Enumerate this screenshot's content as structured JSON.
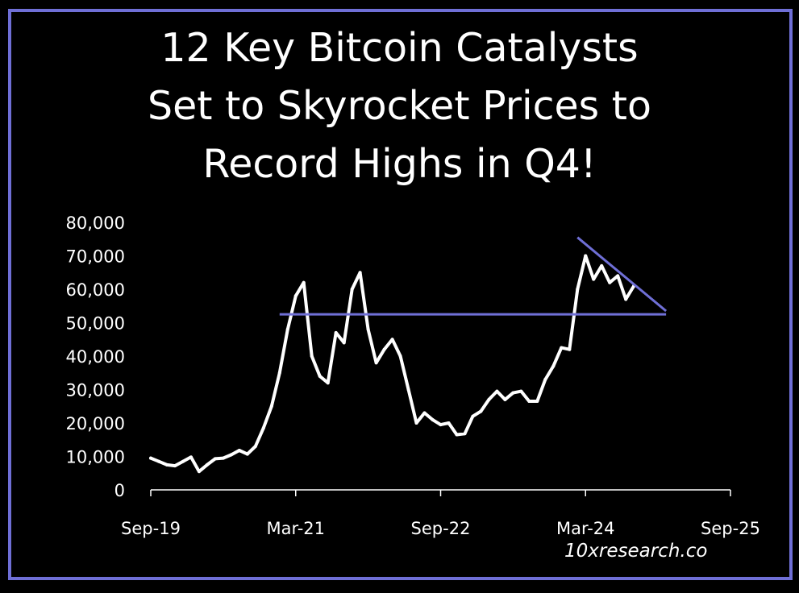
{
  "title_lines": [
    "12 Key Bitcoin Catalysts",
    "Set to Skyrocket Prices to",
    "Record Highs in Q4!"
  ],
  "watermark": "10xresearch.co",
  "colors": {
    "background": "#000000",
    "frame": "#6f6fd6",
    "price_line": "#ffffff",
    "trend_lines": "#6f6fd6"
  },
  "chart_data": {
    "type": "line",
    "title": "12 Key Bitcoin Catalysts Set to Skyrocket Prices to Record Highs in Q4!",
    "xlabel": "",
    "ylabel": "",
    "grid": false,
    "legend": "none",
    "xlim": [
      "2019-09",
      "2025-09"
    ],
    "ylim": [
      0,
      80000
    ],
    "x_ticks": [
      "Sep-19",
      "Mar-21",
      "Sep-22",
      "Mar-24",
      "Sep-25"
    ],
    "y_ticks": [
      "0",
      "10,000",
      "20,000",
      "30,000",
      "40,000",
      "50,000",
      "60,000",
      "70,000",
      "80,000"
    ],
    "series": [
      {
        "values": [
          [
            "2019-09",
            9500
          ],
          [
            "2019-10",
            8500
          ],
          [
            "2019-11",
            7500
          ],
          [
            "2019-12",
            7200
          ],
          [
            "2020-01",
            8500
          ],
          [
            "2020-02",
            9800
          ],
          [
            "2020-03",
            5500
          ],
          [
            "2020-04",
            7500
          ],
          [
            "2020-05",
            9300
          ],
          [
            "2020-06",
            9500
          ],
          [
            "2020-07",
            10500
          ],
          [
            "2020-08",
            11800
          ],
          [
            "2020-09",
            10700
          ],
          [
            "2020-10",
            13000
          ],
          [
            "2020-11",
            18500
          ],
          [
            "2020-12",
            25000
          ],
          [
            "2021-01",
            35000
          ],
          [
            "2021-02",
            48000
          ],
          [
            "2021-03",
            58000
          ],
          [
            "2021-04",
            62000
          ],
          [
            "2021-05",
            40000
          ],
          [
            "2021-06",
            34000
          ],
          [
            "2021-07",
            32000
          ],
          [
            "2021-08",
            47000
          ],
          [
            "2021-09",
            44000
          ],
          [
            "2021-10",
            60000
          ],
          [
            "2021-11",
            65000
          ],
          [
            "2021-12",
            48000
          ],
          [
            "2022-01",
            38000
          ],
          [
            "2022-02",
            42000
          ],
          [
            "2022-03",
            45000
          ],
          [
            "2022-04",
            40000
          ],
          [
            "2022-05",
            30000
          ],
          [
            "2022-06",
            20000
          ],
          [
            "2022-07",
            23000
          ],
          [
            "2022-08",
            21000
          ],
          [
            "2022-09",
            19500
          ],
          [
            "2022-10",
            20000
          ],
          [
            "2022-11",
            16500
          ],
          [
            "2022-12",
            16800
          ],
          [
            "2023-01",
            22000
          ],
          [
            "2023-02",
            23500
          ],
          [
            "2023-03",
            27000
          ],
          [
            "2023-04",
            29500
          ],
          [
            "2023-05",
            27000
          ],
          [
            "2023-06",
            29000
          ],
          [
            "2023-07",
            29500
          ],
          [
            "2023-08",
            26500
          ],
          [
            "2023-09",
            26500
          ],
          [
            "2023-10",
            33000
          ],
          [
            "2023-11",
            37000
          ],
          [
            "2023-12",
            42500
          ],
          [
            "2024-01",
            42000
          ],
          [
            "2024-02",
            60000
          ],
          [
            "2024-03",
            70000
          ],
          [
            "2024-04",
            63000
          ],
          [
            "2024-05",
            67000
          ],
          [
            "2024-06",
            62000
          ],
          [
            "2024-07",
            64000
          ],
          [
            "2024-08",
            57000
          ],
          [
            "2024-09",
            61000
          ]
        ]
      }
    ],
    "annotations": [
      {
        "type": "horizontal-line",
        "y": 52500,
        "x_start": "2021-01",
        "x_end": "2025-01"
      },
      {
        "type": "trend-line",
        "from": [
          "2024-02",
          75500
        ],
        "to": [
          "2025-01",
          53500
        ]
      }
    ]
  }
}
